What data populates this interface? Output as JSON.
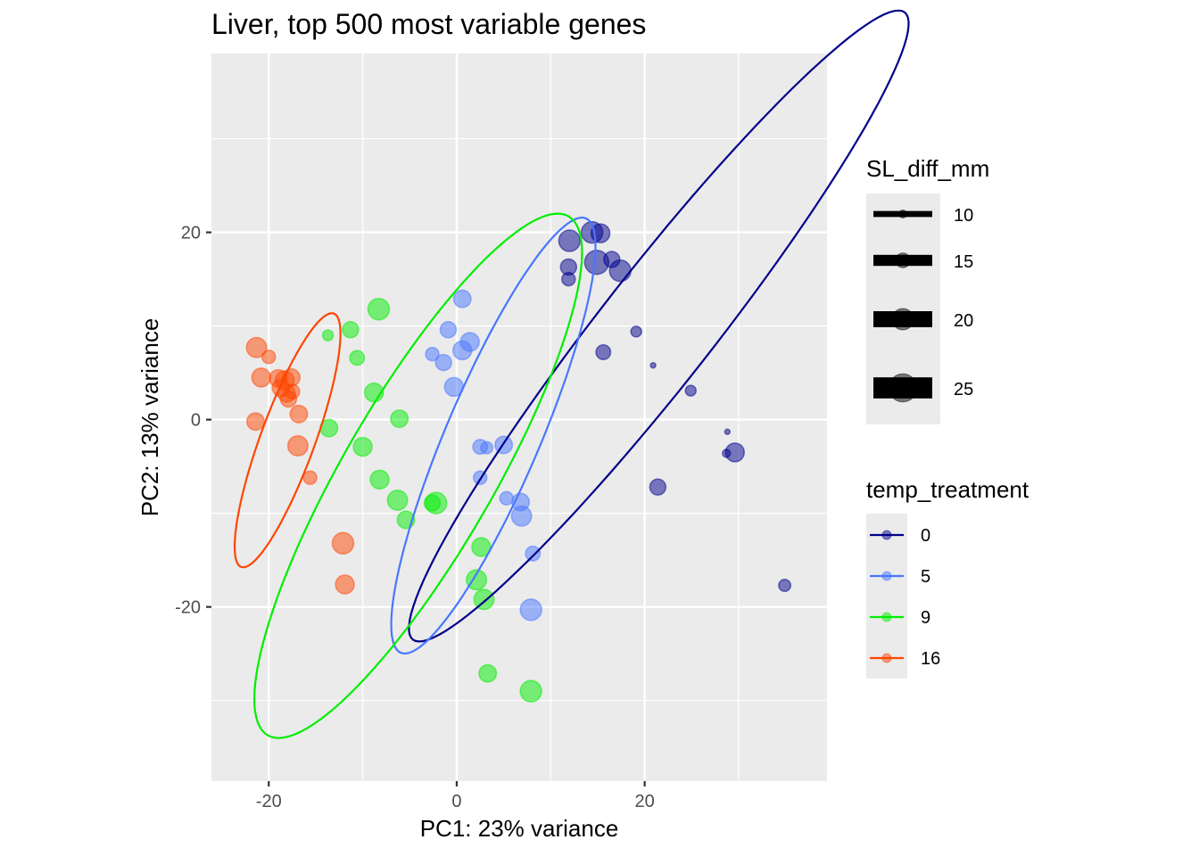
{
  "chart_data": {
    "type": "scatter",
    "title": "Liver, top 500 most variable genes",
    "xlabel": "PC1: 23% variance",
    "ylabel": "PC2: 13% variance",
    "xlim": [
      -26.1,
      39.4
    ],
    "ylim": [
      -38.6,
      39.1
    ],
    "x_ticks": [
      -20,
      0,
      20
    ],
    "x_tick_labels": [
      "-20",
      "0",
      "20"
    ],
    "y_ticks": [
      -20,
      0,
      20
    ],
    "y_tick_labels": [
      "-20",
      "0",
      "20"
    ],
    "x_minor_grid": [
      -10,
      10,
      30
    ],
    "y_minor_grid": [
      -30,
      -10,
      10,
      30
    ],
    "grid": true,
    "legend_size": {
      "title": "SL_diff_mm",
      "entries": [
        {
          "label": "10",
          "value": 10
        },
        {
          "label": "15",
          "value": 15
        },
        {
          "label": "20",
          "value": 20
        },
        {
          "label": "25",
          "value": 25
        }
      ]
    },
    "legend_color": {
      "title": "temp_treatment",
      "entries": [
        {
          "label": "0",
          "color": "#00008B"
        },
        {
          "label": "5",
          "color": "#4876FF"
        },
        {
          "label": "9",
          "color": "#00EE00"
        },
        {
          "label": "16",
          "color": "#FF4500"
        }
      ]
    },
    "series": [
      {
        "name": "0",
        "color": "#00008B",
        "ellipse": {
          "center": [
            21.5,
            10.0
          ],
          "semi_major": 42.5,
          "semi_minor": 6.0,
          "angle_deg": -52
        },
        "points": [
          {
            "x": 12.0,
            "y": 19.1,
            "size": 20
          },
          {
            "x": 14.4,
            "y": 20.0,
            "size": 20
          },
          {
            "x": 15.3,
            "y": 19.9,
            "size": 18
          },
          {
            "x": 11.9,
            "y": 16.3,
            "size": 16
          },
          {
            "x": 11.9,
            "y": 15.0,
            "size": 14
          },
          {
            "x": 14.9,
            "y": 16.8,
            "size": 22
          },
          {
            "x": 16.5,
            "y": 17.1,
            "size": 16
          },
          {
            "x": 17.4,
            "y": 15.9,
            "size": 20
          },
          {
            "x": 15.6,
            "y": 7.2,
            "size": 15
          },
          {
            "x": 19.1,
            "y": 9.4,
            "size": 12
          },
          {
            "x": 20.9,
            "y": 5.8,
            "size": 8
          },
          {
            "x": 24.9,
            "y": 3.1,
            "size": 12
          },
          {
            "x": 28.8,
            "y": -1.3,
            "size": 8
          },
          {
            "x": 28.7,
            "y": -3.6,
            "size": 10
          },
          {
            "x": 29.6,
            "y": -3.5,
            "size": 18
          },
          {
            "x": 21.4,
            "y": -7.2,
            "size": 16
          },
          {
            "x": 34.9,
            "y": -17.7,
            "size": 13
          }
        ]
      },
      {
        "name": "5",
        "color": "#4876FF",
        "ellipse": {
          "center": [
            3.9,
            -1.7
          ],
          "semi_major": 25.2,
          "semi_minor": 5.0,
          "angle_deg": -67
        },
        "points": [
          {
            "x": 0.6,
            "y": 12.9,
            "size": 17
          },
          {
            "x": -0.9,
            "y": 9.6,
            "size": 16
          },
          {
            "x": 1.4,
            "y": 8.3,
            "size": 18
          },
          {
            "x": 0.6,
            "y": 7.4,
            "size": 18
          },
          {
            "x": -2.6,
            "y": 7.0,
            "size": 14
          },
          {
            "x": -1.4,
            "y": 6.1,
            "size": 16
          },
          {
            "x": -0.3,
            "y": 3.5,
            "size": 18
          },
          {
            "x": 2.5,
            "y": -2.9,
            "size": 15
          },
          {
            "x": 3.2,
            "y": -3.0,
            "size": 13
          },
          {
            "x": 5.0,
            "y": -2.7,
            "size": 17
          },
          {
            "x": 2.5,
            "y": -6.2,
            "size": 14
          },
          {
            "x": 5.3,
            "y": -8.4,
            "size": 14
          },
          {
            "x": 6.8,
            "y": -8.8,
            "size": 17
          },
          {
            "x": 6.9,
            "y": -10.3,
            "size": 19
          },
          {
            "x": 8.1,
            "y": -14.3,
            "size": 15
          },
          {
            "x": 7.9,
            "y": -20.3,
            "size": 20
          }
        ]
      },
      {
        "name": "9",
        "color": "#00EE00",
        "ellipse": {
          "center": [
            -4.1,
            -6.0
          ],
          "semi_major": 32.0,
          "semi_minor": 8.0,
          "angle_deg": -60
        },
        "points": [
          {
            "x": -8.3,
            "y": 11.8,
            "size": 20
          },
          {
            "x": -11.3,
            "y": 9.6,
            "size": 16
          },
          {
            "x": -13.7,
            "y": 9.0,
            "size": 12
          },
          {
            "x": -10.6,
            "y": 6.6,
            "size": 15
          },
          {
            "x": -8.8,
            "y": 2.9,
            "size": 18
          },
          {
            "x": -6.1,
            "y": 0.1,
            "size": 17
          },
          {
            "x": -13.6,
            "y": -0.9,
            "size": 17
          },
          {
            "x": -10.0,
            "y": -2.9,
            "size": 18
          },
          {
            "x": -8.2,
            "y": -6.4,
            "size": 18
          },
          {
            "x": -6.3,
            "y": -8.6,
            "size": 19
          },
          {
            "x": -5.4,
            "y": -10.7,
            "size": 17
          },
          {
            "x": -2.6,
            "y": -8.9,
            "size": 16
          },
          {
            "x": -2.2,
            "y": -8.9,
            "size": 20
          },
          {
            "x": 2.6,
            "y": -13.6,
            "size": 18
          },
          {
            "x": 2.1,
            "y": -17.1,
            "size": 19
          },
          {
            "x": 2.9,
            "y": -19.2,
            "size": 19
          },
          {
            "x": 3.3,
            "y": -27.1,
            "size": 17
          },
          {
            "x": 7.9,
            "y": -29.0,
            "size": 20
          }
        ]
      },
      {
        "name": "16",
        "color": "#FF4500",
        "ellipse": {
          "center": [
            -18.0,
            -2.2
          ],
          "semi_major": 14.4,
          "semi_minor": 2.9,
          "angle_deg": -70
        },
        "points": [
          {
            "x": -21.3,
            "y": 7.7,
            "size": 19
          },
          {
            "x": -20.0,
            "y": 6.7,
            "size": 14
          },
          {
            "x": -20.8,
            "y": 4.5,
            "size": 18
          },
          {
            "x": -19.0,
            "y": 4.4,
            "size": 17
          },
          {
            "x": -18.3,
            "y": 4.2,
            "size": 18
          },
          {
            "x": -17.6,
            "y": 4.5,
            "size": 17
          },
          {
            "x": -18.7,
            "y": 3.4,
            "size": 17
          },
          {
            "x": -18.1,
            "y": 2.8,
            "size": 17
          },
          {
            "x": -17.9,
            "y": 2.2,
            "size": 16
          },
          {
            "x": -17.5,
            "y": 3.0,
            "size": 15
          },
          {
            "x": -16.8,
            "y": 0.6,
            "size": 17
          },
          {
            "x": -21.4,
            "y": -0.2,
            "size": 17
          },
          {
            "x": -16.9,
            "y": -2.8,
            "size": 19
          },
          {
            "x": -15.6,
            "y": -6.2,
            "size": 14
          },
          {
            "x": -12.1,
            "y": -13.2,
            "size": 20
          },
          {
            "x": -11.9,
            "y": -17.6,
            "size": 18
          }
        ]
      }
    ]
  }
}
